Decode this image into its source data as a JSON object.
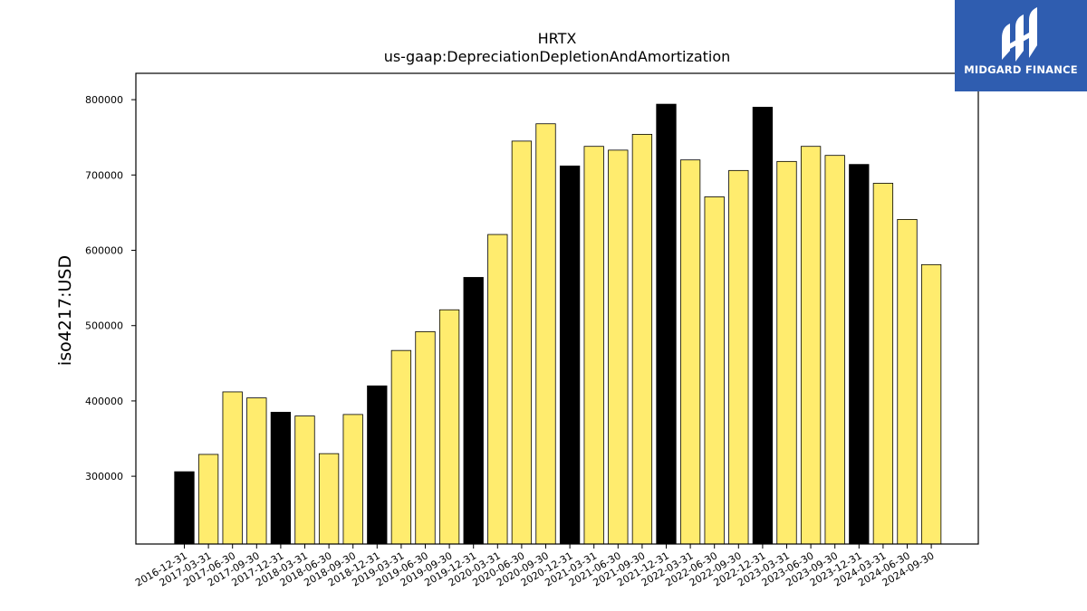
{
  "brand": {
    "name": "MIDGARD FINANCE"
  },
  "colors": {
    "regular": "#ffec6e",
    "year_end": "#000000",
    "brand_bg": "#2f5db0"
  },
  "chart_data": {
    "type": "bar",
    "title": "HRTX",
    "subtitle": "us-gaap:DepreciationDepletionAndAmortization",
    "xlabel": "",
    "ylabel": "iso4217:USD",
    "ylim": [
      210000,
      835000
    ],
    "yticks": [
      300000,
      400000,
      500000,
      600000,
      700000,
      800000
    ],
    "grid": false,
    "categories": [
      "2016-12-31",
      "2017-03-31",
      "2017-06-30",
      "2017-09-30",
      "2017-12-31",
      "2018-03-31",
      "2018-06-30",
      "2018-09-30",
      "2018-12-31",
      "2019-03-31",
      "2019-06-30",
      "2019-09-30",
      "2019-12-31",
      "2020-03-31",
      "2020-06-30",
      "2020-09-30",
      "2020-12-31",
      "2021-03-31",
      "2021-06-30",
      "2021-09-30",
      "2021-12-31",
      "2022-03-31",
      "2022-06-30",
      "2022-09-30",
      "2022-12-31",
      "2023-03-31",
      "2023-06-30",
      "2023-09-30",
      "2023-12-31",
      "2024-03-31",
      "2024-06-30",
      "2024-09-30"
    ],
    "values": [
      306000,
      329000,
      412000,
      404000,
      385000,
      380000,
      330000,
      382000,
      420000,
      467000,
      492000,
      521000,
      564000,
      621000,
      745000,
      768000,
      712000,
      738000,
      733000,
      754000,
      794000,
      720000,
      671000,
      706000,
      790000,
      718000,
      738000,
      726000,
      714000,
      689000,
      641000,
      581000
    ],
    "year_end": [
      true,
      false,
      false,
      false,
      true,
      false,
      false,
      false,
      true,
      false,
      false,
      false,
      true,
      false,
      false,
      false,
      true,
      false,
      false,
      false,
      true,
      false,
      false,
      false,
      true,
      false,
      false,
      false,
      true,
      false,
      false,
      false
    ]
  }
}
